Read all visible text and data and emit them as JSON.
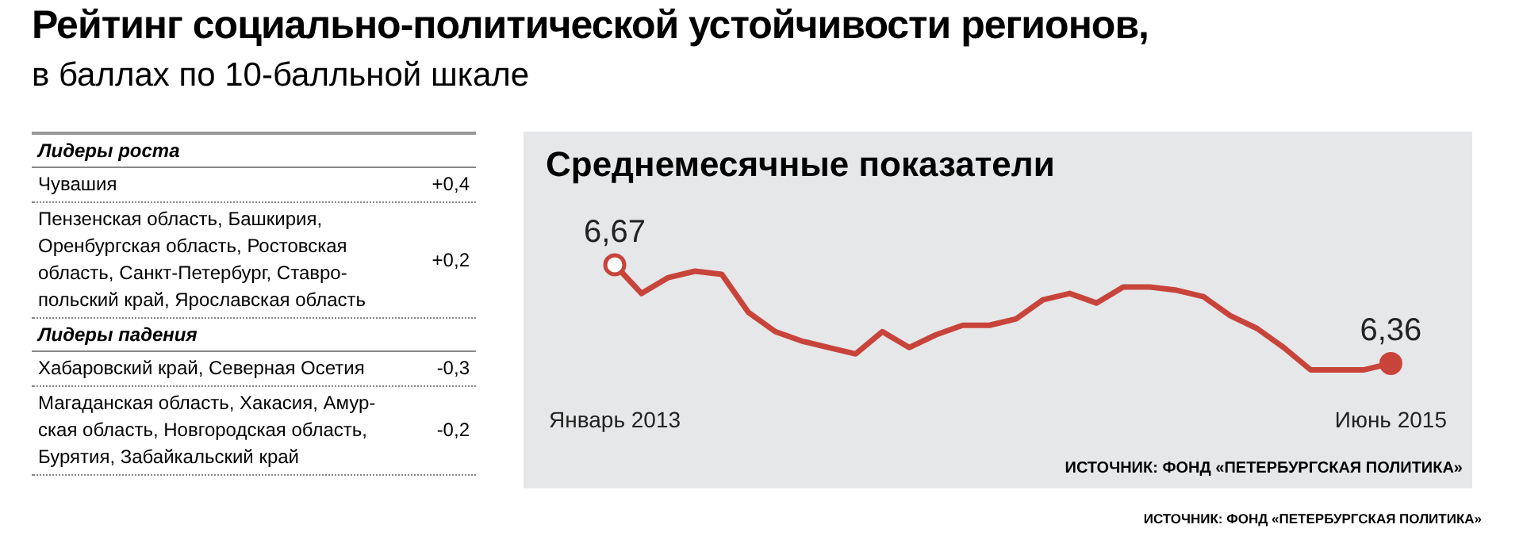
{
  "chart_data": [
    {
      "type": "other",
      "title": "Рейтинг социально-политической устойчивости регионов,",
      "subtitle": "в баллах по 10-балльной шкале",
      "categories": [
        "Чувашия",
        "Пензенская область, Башкирия, Оренбургская область, Ростовская область, Санкт-Петербург, Ставро-польский край, Ярославская область",
        "Хабаровский край, Северная Осетия",
        "Магаданская область, Хакасия, Амур-ская область, Новгородская область, Бурятия, Забайкальский край"
      ],
      "series": [
        {
          "name": "Лидеры роста",
          "values": [
            0.4,
            0.2,
            null,
            null
          ],
          "value_labels": [
            "+0,4",
            "+0,2",
            null,
            null
          ]
        },
        {
          "name": "Лидеры падения",
          "values": [
            null,
            null,
            -0.3,
            -0.2
          ],
          "value_labels": [
            null,
            null,
            "-0,3",
            "-0,2"
          ]
        }
      ]
    },
    {
      "type": "line",
      "title": "Среднемесячные показатели",
      "categories": [
        "Январь 2013",
        null,
        null,
        null,
        null,
        null,
        null,
        null,
        null,
        null,
        null,
        null,
        null,
        null,
        null,
        null,
        null,
        null,
        null,
        null,
        null,
        null,
        null,
        null,
        null,
        null,
        null,
        null,
        null,
        "Июнь 2015"
      ],
      "series": [
        {
          "color": "#c8443a",
          "values": [
            6.67,
            6.58,
            6.63,
            6.65,
            6.64,
            6.52,
            6.46,
            6.43,
            6.41,
            6.39,
            6.46,
            6.41,
            6.45,
            6.48,
            6.48,
            6.5,
            6.56,
            6.58,
            6.55,
            6.6,
            6.6,
            6.59,
            6.57,
            6.51,
            6.47,
            6.41,
            6.34,
            6.34,
            6.34,
            6.36
          ],
          "value_labels": [
            "6,67",
            null,
            null,
            null,
            null,
            null,
            null,
            null,
            null,
            null,
            null,
            null,
            null,
            null,
            null,
            null,
            null,
            null,
            null,
            null,
            null,
            null,
            null,
            null,
            null,
            null,
            null,
            null,
            null,
            "6,36"
          ]
        }
      ],
      "annotations": [
        "ИСТОЧНИК: ФОНД «ПЕТЕРБУРГСКАЯ ПОЛИТИКА»",
        "ИСТОЧНИК: ФОНД «ПЕТЕРБУРГСКАЯ ПОЛИТИКА»"
      ]
    }
  ]
}
